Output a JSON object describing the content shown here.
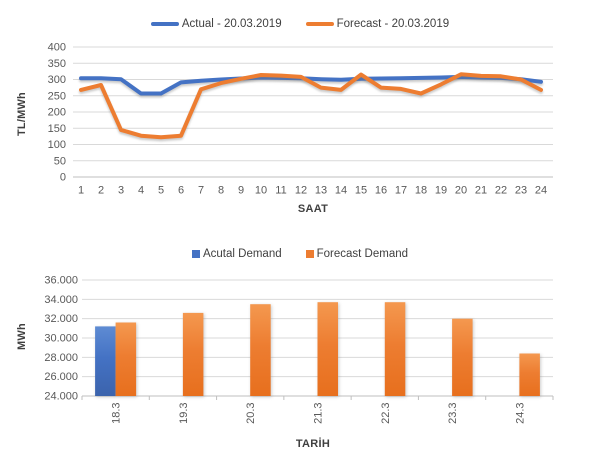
{
  "page": {
    "background": "#ffffff"
  },
  "colors": {
    "grid": "#D9D9D9",
    "axis": "#BFBFBF",
    "tick_text": "#595959",
    "axis_title_text": "#404040",
    "legend_text": "#3F3F3F"
  },
  "chart_data": [
    {
      "type": "line",
      "title": "",
      "legend_position": "top",
      "grid": true,
      "xlabel": "SAAT",
      "ylabel": "TL/MWh",
      "ylim": [
        0,
        400
      ],
      "ytick_step": 50,
      "x": [
        1,
        2,
        3,
        4,
        5,
        6,
        7,
        8,
        9,
        10,
        11,
        12,
        13,
        14,
        15,
        16,
        17,
        18,
        19,
        20,
        21,
        22,
        23,
        24
      ],
      "series": [
        {
          "name": "Actual - 20.03.2019",
          "color": "#4472C4",
          "values": [
            304,
            304,
            301,
            257,
            257,
            291,
            296,
            300,
            303,
            306,
            305,
            304,
            301,
            299,
            302,
            303,
            304,
            305,
            306,
            308,
            306,
            305,
            301,
            293
          ]
        },
        {
          "name": "Forecast - 20.03.2019",
          "color": "#ED7D31",
          "values": [
            268,
            283,
            145,
            127,
            122,
            127,
            270,
            289,
            302,
            314,
            312,
            308,
            275,
            268,
            315,
            275,
            271,
            257,
            285,
            316,
            311,
            310,
            300,
            268
          ]
        }
      ]
    },
    {
      "type": "bar",
      "title": "",
      "legend_position": "top",
      "grid": true,
      "xlabel": "TARİH",
      "ylabel": "MWh",
      "ylim": [
        24000,
        36000
      ],
      "ytick_step": 2000,
      "ytick_format": "thousands-dot",
      "categories": [
        "18.3",
        "19.3",
        "20.3",
        "21.3",
        "22.3",
        "23.3",
        "24.3"
      ],
      "series": [
        {
          "name": "Acutal Demand",
          "color": "#4472C4",
          "fill_top": "#5E8BD3",
          "fill_bottom": "#3B63AC",
          "values": [
            31200,
            null,
            null,
            null,
            null,
            null,
            null
          ]
        },
        {
          "name": "Forecast Demand",
          "color": "#ED7D31",
          "fill_top": "#F4984F",
          "fill_bottom": "#E76F1D",
          "values": [
            31600,
            32600,
            33500,
            33700,
            33700,
            32000,
            28400
          ]
        }
      ]
    }
  ]
}
